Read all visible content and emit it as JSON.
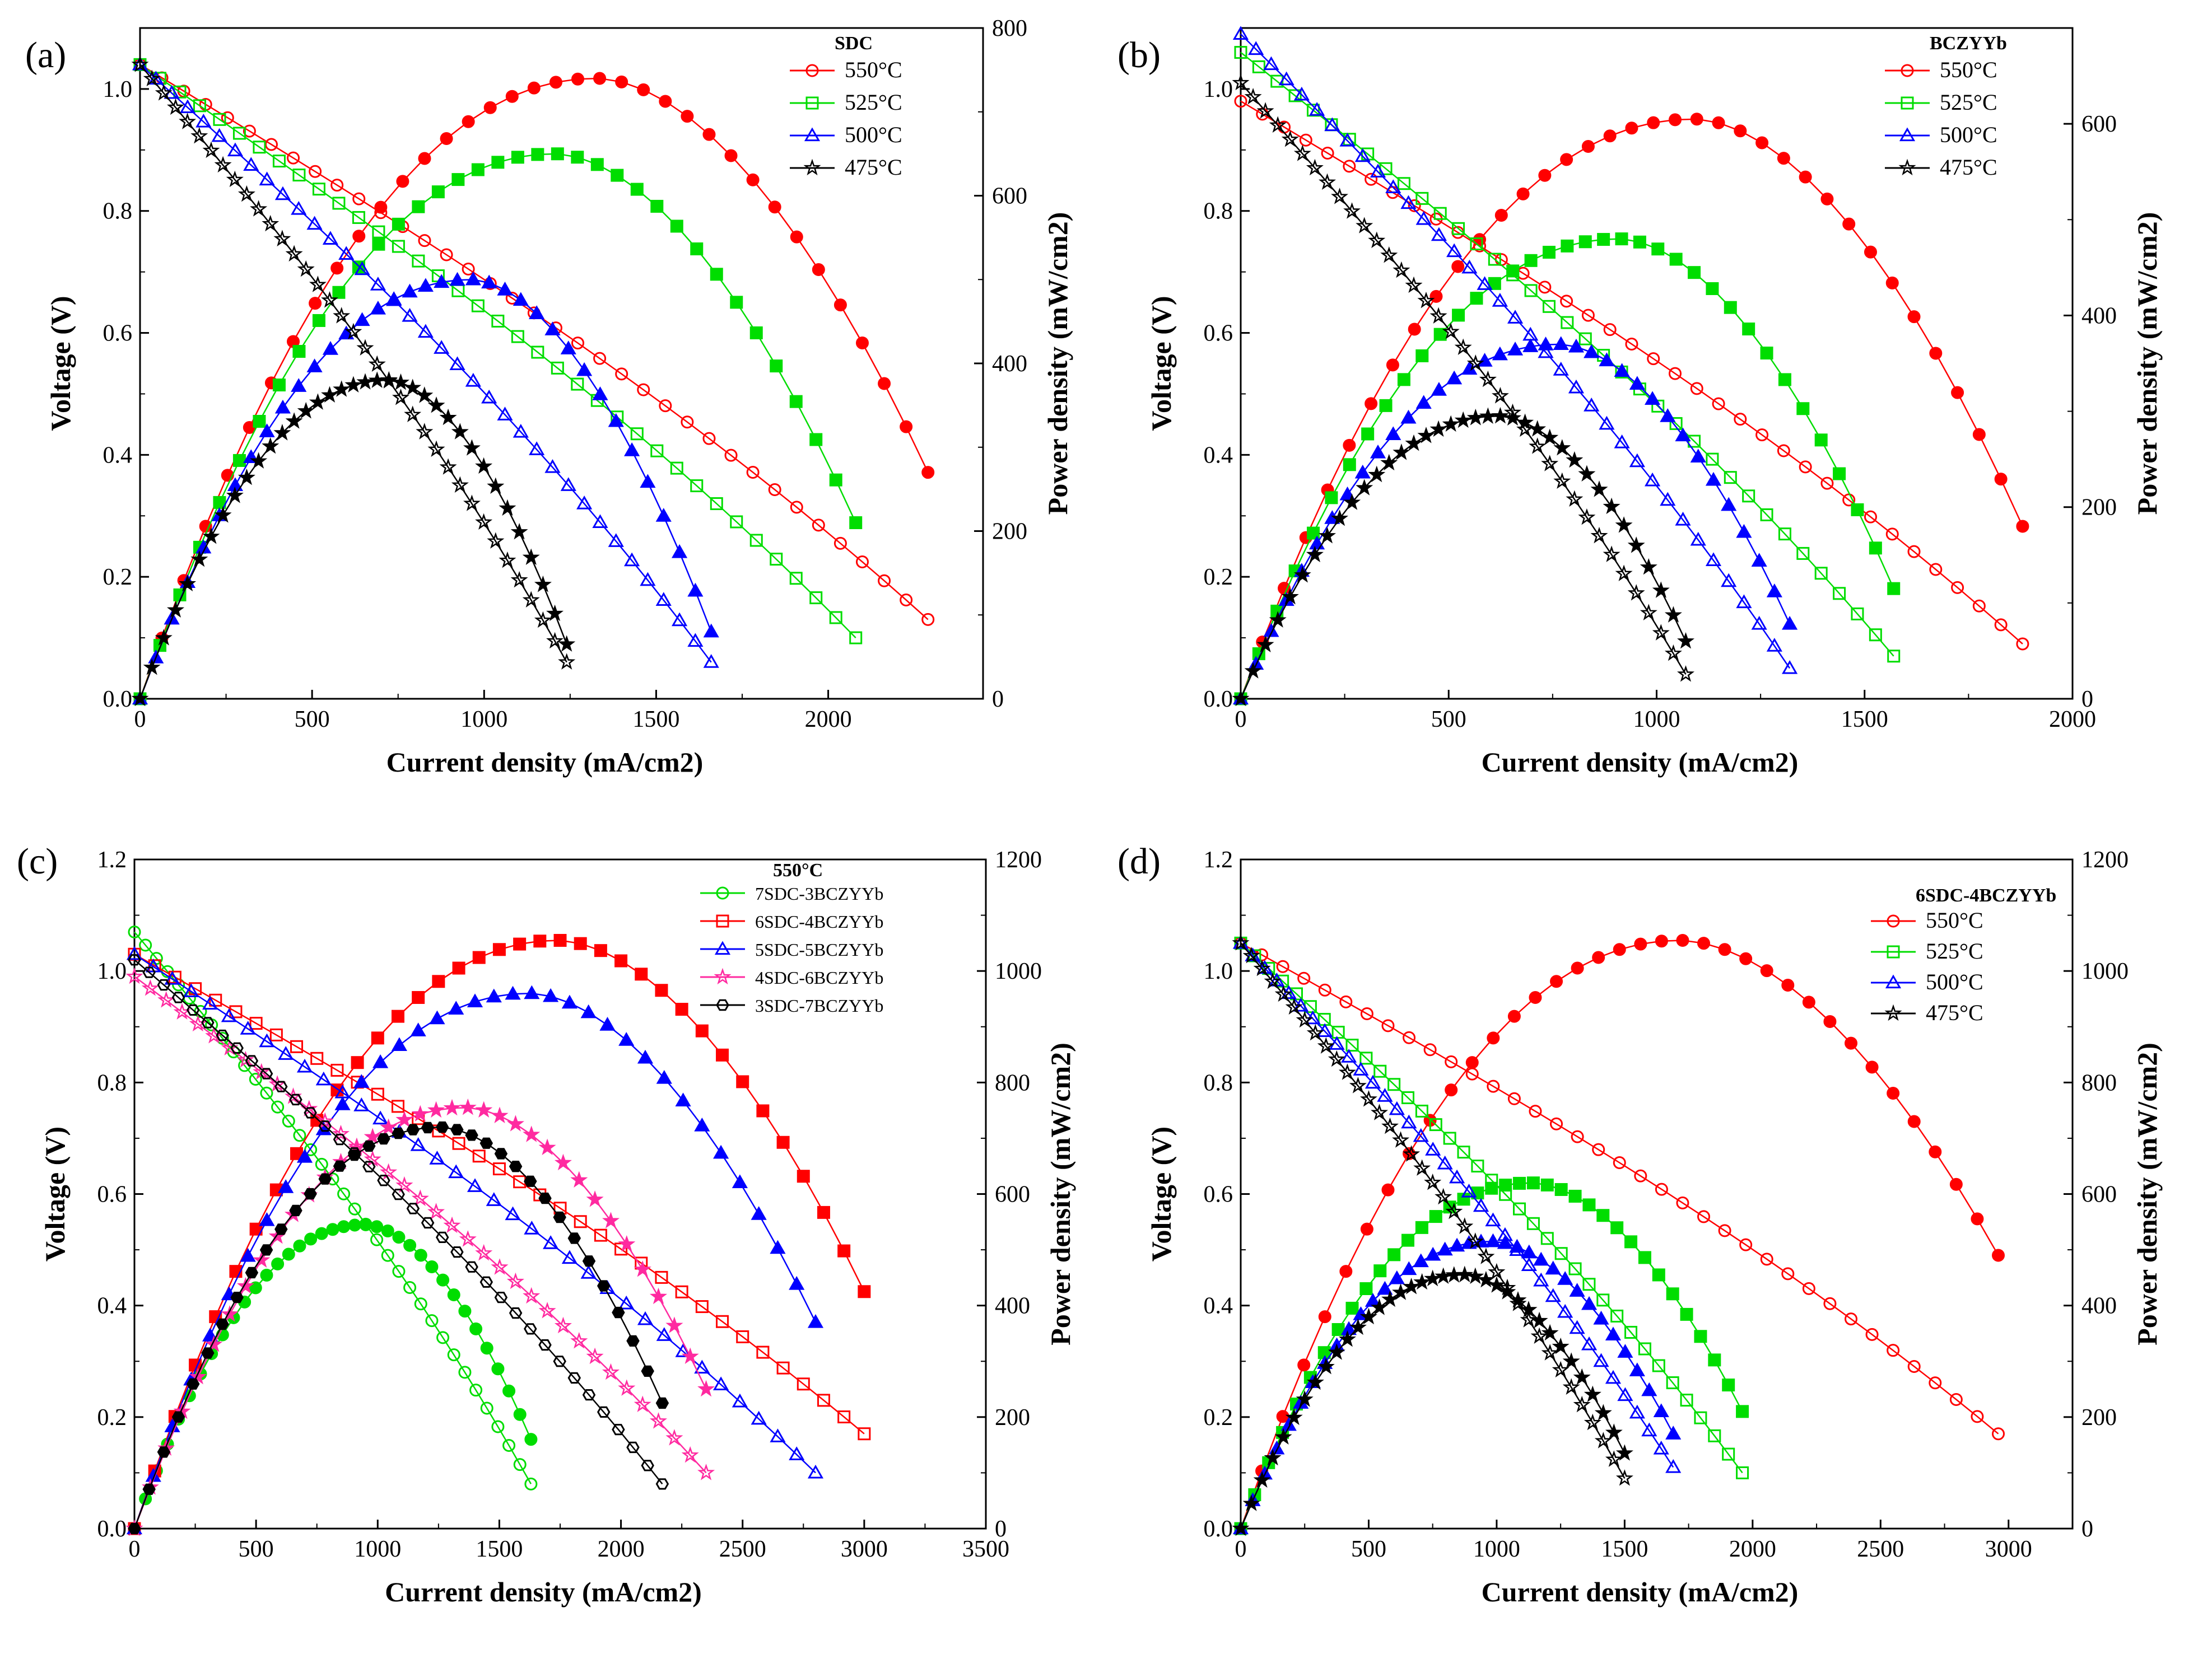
{
  "chart_data": [
    {
      "type": "line",
      "panel": "(a)",
      "legend_title": "SDC",
      "legend_placement": "top-right",
      "xlabel": "Current density (mA/cm2)",
      "ylabel": "Voltage (V)",
      "y2label": "Power density (mW/cm2)",
      "xlim": [
        0,
        2450
      ],
      "ylim": [
        0,
        1.1
      ],
      "y2lim": [
        0,
        800
      ],
      "x_ticks": [
        0,
        500,
        1000,
        1500,
        2000
      ],
      "y_ticks": [
        0.0,
        0.2,
        0.4,
        0.6,
        0.8,
        1.0
      ],
      "y2_ticks": [
        0,
        200,
        400,
        600,
        800
      ],
      "series": [
        {
          "name": "550°C",
          "color": "#ff0000",
          "marker": "circle",
          "x_max": 2290,
          "v0": 1.04,
          "v_end": 0.13,
          "p_max": 740,
          "p_end": 270
        },
        {
          "name": "525°C",
          "color": "#00dd00",
          "marker": "square",
          "x_max": 2080,
          "v0": 1.04,
          "v_end": 0.1,
          "p_max": 650,
          "p_end": 210
        },
        {
          "name": "500°C",
          "color": "#0000ff",
          "marker": "triangle",
          "x_max": 1660,
          "v0": 1.04,
          "v_end": 0.06,
          "p_max": 500,
          "p_end": 80
        },
        {
          "name": "475°C",
          "color": "#000000",
          "marker": "star",
          "x_max": 1240,
          "v0": 1.04,
          "v_end": 0.06,
          "p_max": 380,
          "p_end": 65
        }
      ]
    },
    {
      "type": "line",
      "panel": "(b)",
      "legend_title": "BCZYYb",
      "legend_placement": "top-right",
      "xlabel": "Current density (mA/cm2)",
      "ylabel": "Voltage (V)",
      "y2label": "Power density (mW/cm2)",
      "xlim": [
        0,
        2000
      ],
      "ylim": [
        0,
        1.1
      ],
      "y2lim": [
        0,
        700
      ],
      "x_ticks": [
        0,
        500,
        1000,
        1500,
        2000
      ],
      "y_ticks": [
        0.0,
        0.2,
        0.4,
        0.6,
        0.8,
        1.0
      ],
      "y2_ticks": [
        0,
        200,
        400,
        600
      ],
      "series": [
        {
          "name": "550°C",
          "color": "#ff0000",
          "marker": "circle",
          "x_max": 1880,
          "v0": 0.98,
          "v_end": 0.09,
          "p_max": 605,
          "p_end": 180
        },
        {
          "name": "525°C",
          "color": "#00dd00",
          "marker": "square",
          "x_max": 1570,
          "v0": 1.06,
          "v_end": 0.07,
          "p_max": 480,
          "p_end": 115
        },
        {
          "name": "500°C",
          "color": "#0000ff",
          "marker": "triangle",
          "x_max": 1320,
          "v0": 1.09,
          "v_end": 0.05,
          "p_max": 370,
          "p_end": 78
        },
        {
          "name": "475°C",
          "color": "#000000",
          "marker": "star",
          "x_max": 1070,
          "v0": 1.01,
          "v_end": 0.04,
          "p_max": 295,
          "p_end": 60
        }
      ]
    },
    {
      "type": "line",
      "panel": "(c)",
      "legend_title": "550°C",
      "legend_placement": "top-right",
      "xlabel": "Current density (mA/cm2)",
      "ylabel": "Voltage (V)",
      "y2label": "Power density (mW/cm2)",
      "xlim": [
        0,
        3500
      ],
      "ylim": [
        0,
        1.2
      ],
      "y2lim": [
        0,
        1200
      ],
      "x_ticks": [
        0,
        500,
        1000,
        1500,
        2000,
        2500,
        3000,
        3500
      ],
      "y_ticks": [
        0.0,
        0.2,
        0.4,
        0.6,
        0.8,
        1.0,
        1.2
      ],
      "y2_ticks": [
        0,
        200,
        400,
        600,
        800,
        1000,
        1200
      ],
      "series": [
        {
          "name": "7SDC-3BCZYYb",
          "color": "#00dd00",
          "marker": "circle",
          "x_max": 1630,
          "v0": 1.07,
          "v_end": 0.08,
          "p_max": 545,
          "p_end": 160
        },
        {
          "name": "6SDC-4BCZYYb",
          "color": "#ff0000",
          "marker": "square",
          "x_max": 3000,
          "v0": 1.03,
          "v_end": 0.17,
          "p_max": 1055,
          "p_end": 425
        },
        {
          "name": "5SDC-5BCZYYb",
          "color": "#0000ff",
          "marker": "triangle",
          "x_max": 2800,
          "v0": 1.03,
          "v_end": 0.1,
          "p_max": 960,
          "p_end": 370
        },
        {
          "name": "4SDC-6BCZYYb",
          "color": "#ff2aa0",
          "marker": "star",
          "x_max": 2350,
          "v0": 0.99,
          "v_end": 0.1,
          "p_max": 755,
          "p_end": 250
        },
        {
          "name": "3SDC-7BCZYYb",
          "color": "#000000",
          "marker": "hexagon",
          "x_max": 2170,
          "v0": 1.02,
          "v_end": 0.08,
          "p_max": 720,
          "p_end": 225
        }
      ]
    },
    {
      "type": "line",
      "panel": "(d)",
      "legend_title": "6SDC-4BCZYYb",
      "legend_placement": "top-right",
      "xlabel": "Current density (mA/cm2)",
      "ylabel": "Voltage (V)",
      "y2label": "Power density (mW/cm2)",
      "xlim": [
        0,
        3250
      ],
      "ylim": [
        0,
        1.2
      ],
      "y2lim": [
        0,
        1200
      ],
      "x_ticks": [
        0,
        500,
        1000,
        1500,
        2000,
        2500,
        3000
      ],
      "y_ticks": [
        0.0,
        0.2,
        0.4,
        0.6,
        0.8,
        1.0,
        1.2
      ],
      "y2_ticks": [
        0,
        200,
        400,
        600,
        800,
        1000,
        1200
      ],
      "series": [
        {
          "name": "550°C",
          "color": "#ff0000",
          "marker": "circle",
          "x_max": 2960,
          "v0": 1.05,
          "v_end": 0.17,
          "p_max": 1055,
          "p_end": 490
        },
        {
          "name": "525°C",
          "color": "#00dd00",
          "marker": "square",
          "x_max": 1960,
          "v0": 1.05,
          "v_end": 0.1,
          "p_max": 620,
          "p_end": 210
        },
        {
          "name": "500°C",
          "color": "#0000ff",
          "marker": "triangle",
          "x_max": 1690,
          "v0": 1.05,
          "v_end": 0.11,
          "p_max": 515,
          "p_end": 170
        },
        {
          "name": "475°C",
          "color": "#000000",
          "marker": "star",
          "x_max": 1500,
          "v0": 1.05,
          "v_end": 0.09,
          "p_max": 455,
          "p_end": 135
        }
      ]
    }
  ]
}
